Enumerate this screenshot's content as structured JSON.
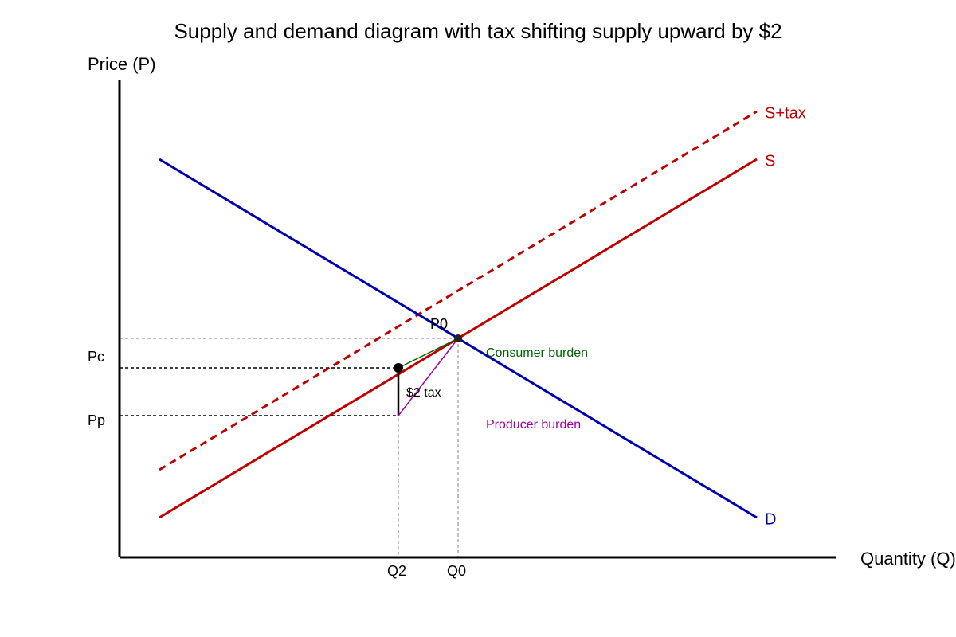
{
  "title": "Supply and demand diagram with tax shifting supply upward by $2",
  "axes": {
    "y_label": "Price (P)",
    "x_label": "Quantity (Q)"
  },
  "curves": {
    "supply_tax": "S+tax",
    "supply": "S",
    "demand": "D"
  },
  "price_labels": {
    "equilibrium": "P0",
    "consumer": "Pc",
    "producer": "Pp"
  },
  "quantity_labels": {
    "after_tax": "Q2",
    "equilibrium": "Q0"
  },
  "annotations": {
    "tax": "$2 tax",
    "consumer_burden": "Consumer burden",
    "producer_burden": "Producer burden"
  }
}
